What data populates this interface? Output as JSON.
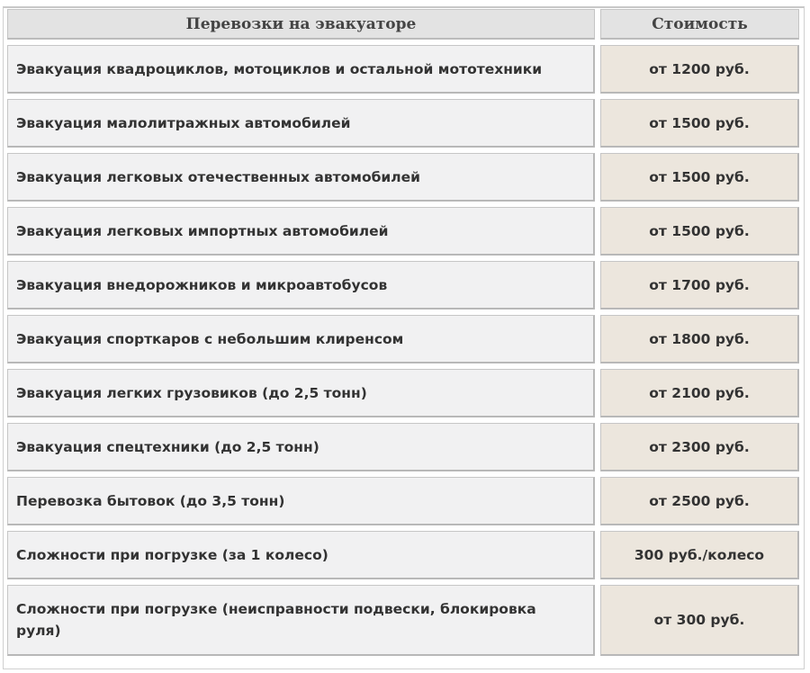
{
  "table": {
    "headers": [
      "Перевозки на эвакуаторе",
      "Стоимость"
    ],
    "rows": [
      {
        "service": "Эвакуация квадроциклов, мотоциклов и остальной мототехники",
        "price": "от 1200 руб."
      },
      {
        "service": "Эвакуация малолитражных автомобилей",
        "price": "от 1500 руб."
      },
      {
        "service": "Эвакуация легковых отечественных автомобилей",
        "price": "от 1500 руб."
      },
      {
        "service": "Эвакуация легковых импортных автомобилей",
        "price": "от 1500 руб."
      },
      {
        "service": "Эвакуация внедорожников и микроавтобусов",
        "price": "от 1700 руб."
      },
      {
        "service": "Эвакуация спорткаров с небольшим клиренсом",
        "price": "от 1800 руб."
      },
      {
        "service": "Эвакуация легких грузовиков (до 2,5 тонн)",
        "price": "от 2100 руб."
      },
      {
        "service": "Эвакуация спецтехники (до 2,5 тонн)",
        "price": "от 2300 руб."
      },
      {
        "service": "Перевозка бытовок (до 3,5 тонн)",
        "price": "от 2500 руб."
      },
      {
        "service": "Сложности при погрузке (за 1 колесо)",
        "price": "300 руб./колесо"
      },
      {
        "service": "Сложности при погрузке (неисправности подвески, блокировка руля)",
        "price": "от 300 руб."
      }
    ]
  },
  "colors": {
    "header_bg": "#e3e3e3",
    "service_bg": "#f1f1f2",
    "price_bg": "#ece6dd"
  }
}
